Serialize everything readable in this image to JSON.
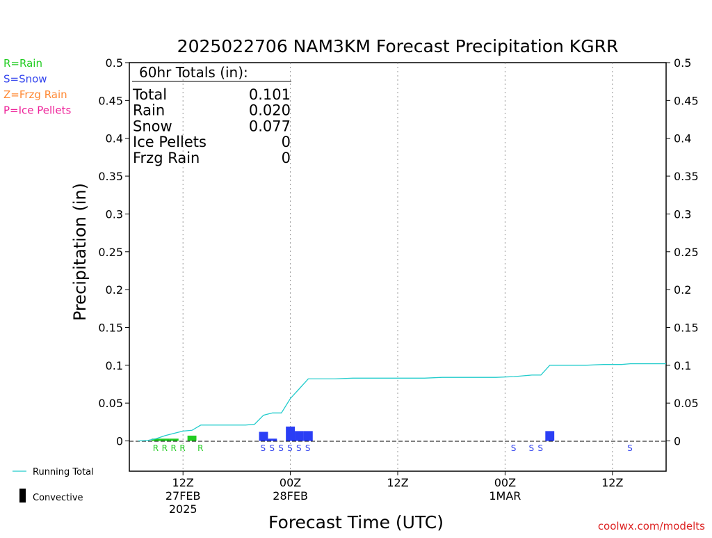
{
  "chart_data": {
    "type": "bar",
    "title": "2025022706 NAM3KM Forecast Precipitation KGRR",
    "ylabel": "Precipitation  (in)",
    "xlabel": "Forecast Time (UTC)",
    "ylim": [
      -0.04,
      0.5
    ],
    "xlim_hours": [
      -1,
      59
    ],
    "y_ticks": [
      0,
      0.05,
      0.1,
      0.15,
      0.2,
      0.25,
      0.3,
      0.35,
      0.4,
      0.45,
      0.5
    ],
    "y_tick_labels": [
      "0",
      "0.05",
      "0.1",
      "0.15",
      "0.2",
      "0.25",
      "0.3",
      "0.35",
      "0.4",
      "0.45",
      "0.5"
    ],
    "x_ticks": [
      {
        "hour": 5,
        "lines": [
          "12Z",
          "27FEB",
          "2025"
        ]
      },
      {
        "hour": 17,
        "lines": [
          "00Z",
          "28FEB"
        ]
      },
      {
        "hour": 29,
        "lines": [
          "12Z"
        ]
      },
      {
        "hour": 41,
        "lines": [
          "00Z",
          "1MAR"
        ]
      },
      {
        "hour": 53,
        "lines": [
          "12Z"
        ]
      }
    ],
    "grid": "vertical dotted at 12Z/00Z",
    "legend_types": [
      {
        "code": "R=Rain",
        "color": "#22cc22"
      },
      {
        "code": "S=Snow",
        "color": "#3344ee"
      },
      {
        "code": "Z=Frzg Rain",
        "color": "#ff8833"
      },
      {
        "code": "P=Ice Pellets",
        "color": "#ee2299"
      }
    ],
    "legend_bottom": {
      "running_total": "Running Total",
      "convective": "Convective"
    },
    "totals_box": {
      "header": "60hr Totals (in):",
      "rows": [
        {
          "label": "Total",
          "value": "0.101"
        },
        {
          "label": "Rain",
          "value": "0.020"
        },
        {
          "label": "Snow",
          "value": "0.077"
        },
        {
          "label": "Ice Pellets",
          "value": "0"
        },
        {
          "label": "Frzg Rain",
          "value": "0"
        }
      ]
    },
    "series": [
      {
        "name": "Rain",
        "color": "#22cc22",
        "bars": [
          {
            "hour": 2,
            "value": 0.003
          },
          {
            "hour": 3,
            "value": 0.003
          },
          {
            "hour": 4,
            "value": 0.003
          },
          {
            "hour": 6,
            "value": 0.007
          }
        ]
      },
      {
        "name": "Snow",
        "color": "#2a3ef5",
        "bars": [
          {
            "hour": 14,
            "value": 0.012
          },
          {
            "hour": 15,
            "value": 0.003
          },
          {
            "hour": 17,
            "value": 0.019
          },
          {
            "hour": 18,
            "value": 0.013
          },
          {
            "hour": 19,
            "value": 0.013
          },
          {
            "hour": 46,
            "value": 0.013
          }
        ]
      }
    ],
    "type_markers": [
      {
        "hour": 1.95,
        "letter": "R",
        "color": "#22cc22"
      },
      {
        "hour": 2.95,
        "letter": "R",
        "color": "#22cc22"
      },
      {
        "hour": 3.95,
        "letter": "R",
        "color": "#22cc22"
      },
      {
        "hour": 4.95,
        "letter": "R",
        "color": "#22cc22"
      },
      {
        "hour": 6.95,
        "letter": "R",
        "color": "#22cc22"
      },
      {
        "hour": 13.95,
        "letter": "S",
        "color": "#3344ee"
      },
      {
        "hour": 14.95,
        "letter": "S",
        "color": "#3344ee"
      },
      {
        "hour": 15.95,
        "letter": "S",
        "color": "#3344ee"
      },
      {
        "hour": 16.95,
        "letter": "S",
        "color": "#3344ee"
      },
      {
        "hour": 17.95,
        "letter": "S",
        "color": "#3344ee"
      },
      {
        "hour": 18.95,
        "letter": "S",
        "color": "#3344ee"
      },
      {
        "hour": 41.95,
        "letter": "S",
        "color": "#3344ee"
      },
      {
        "hour": 43.95,
        "letter": "S",
        "color": "#3344ee"
      },
      {
        "hour": 44.95,
        "letter": "S",
        "color": "#3344ee"
      },
      {
        "hour": 54.95,
        "letter": "S",
        "color": "#3344ee"
      }
    ],
    "running_total": {
      "name": "Running Total",
      "color": "#22cccc",
      "points": [
        [
          0,
          0
        ],
        [
          1,
          0.0005
        ],
        [
          2,
          0.003
        ],
        [
          3,
          0.007
        ],
        [
          4,
          0.01
        ],
        [
          5,
          0.013
        ],
        [
          6,
          0.014
        ],
        [
          7,
          0.021
        ],
        [
          8,
          0.021
        ],
        [
          9,
          0.021
        ],
        [
          10,
          0.021
        ],
        [
          11,
          0.021
        ],
        [
          12,
          0.021
        ],
        [
          13,
          0.022
        ],
        [
          14,
          0.034
        ],
        [
          15,
          0.037
        ],
        [
          16,
          0.037
        ],
        [
          17,
          0.056
        ],
        [
          18,
          0.069
        ],
        [
          19,
          0.082
        ],
        [
          20,
          0.082
        ],
        [
          21,
          0.082
        ],
        [
          22,
          0.082
        ],
        [
          23,
          0.0825
        ],
        [
          24,
          0.083
        ],
        [
          26,
          0.083
        ],
        [
          28,
          0.083
        ],
        [
          30,
          0.083
        ],
        [
          32,
          0.083
        ],
        [
          34,
          0.084
        ],
        [
          36,
          0.084
        ],
        [
          38,
          0.084
        ],
        [
          40,
          0.084
        ],
        [
          42,
          0.085
        ],
        [
          43,
          0.086
        ],
        [
          44,
          0.087
        ],
        [
          45,
          0.087
        ],
        [
          46,
          0.1
        ],
        [
          48,
          0.1
        ],
        [
          50,
          0.1
        ],
        [
          52,
          0.101
        ],
        [
          54,
          0.101
        ],
        [
          55,
          0.102
        ],
        [
          57,
          0.102
        ],
        [
          59,
          0.102
        ]
      ]
    },
    "credit": "coolwx.com/modelts"
  }
}
